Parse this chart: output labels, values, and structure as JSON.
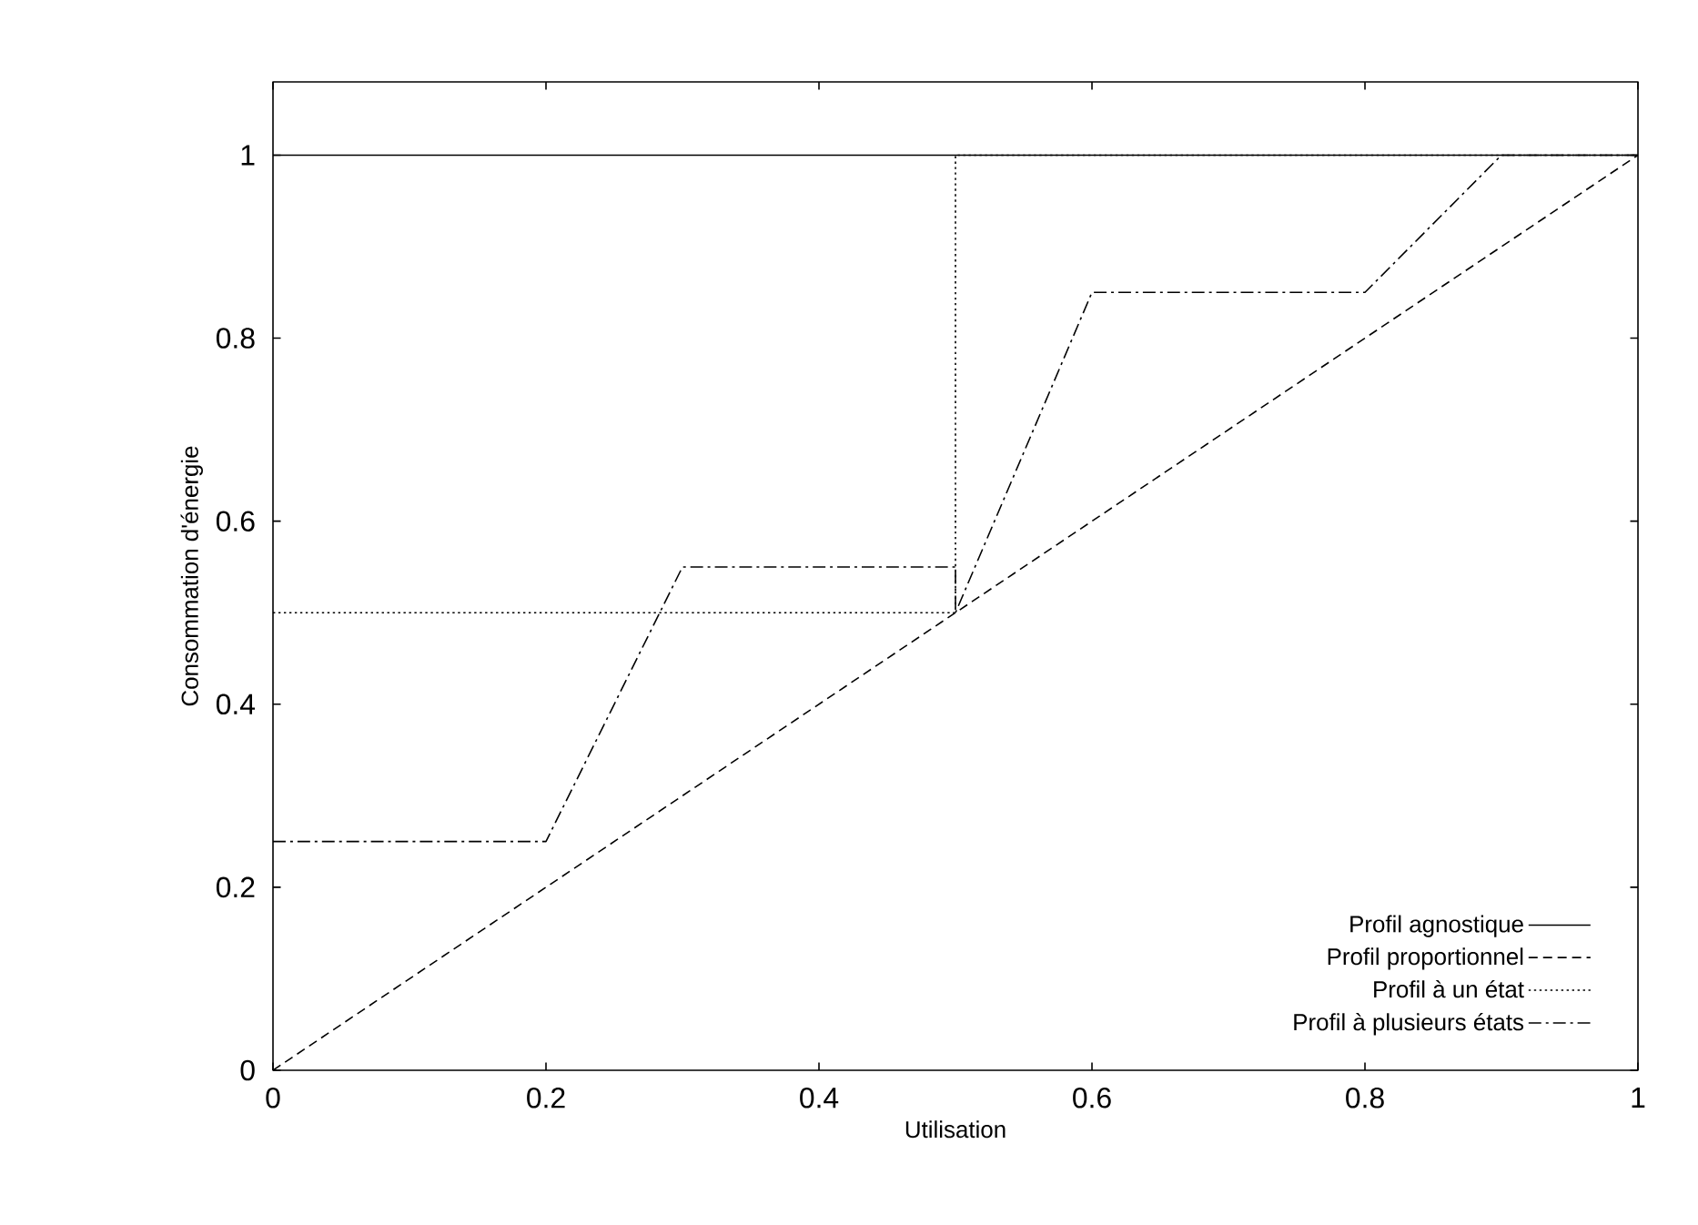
{
  "chart_data": {
    "type": "line",
    "xlabel": "Utilisation",
    "ylabel": "Consommation d'énergie",
    "xlim": [
      0,
      1
    ],
    "ylim": [
      0,
      1.08
    ],
    "xticks": [
      0,
      0.2,
      0.4,
      0.6,
      0.8,
      1
    ],
    "yticks": [
      0,
      0.2,
      0.4,
      0.6,
      0.8,
      1
    ],
    "legend": "bottom right",
    "grid": false,
    "marker": "none",
    "series": [
      {
        "name": "Profil agnostique",
        "color": "#000000",
        "line_style": "solid",
        "x": [
          0,
          1
        ],
        "values": [
          1,
          1
        ]
      },
      {
        "name": "Profil proportionnel",
        "color": "#000000",
        "line_style": "dashed",
        "x": [
          0,
          1
        ],
        "values": [
          0,
          1
        ]
      },
      {
        "name": "Profil à un état",
        "color": "#000000",
        "line_style": "dotted",
        "x": [
          0,
          0.5,
          0.5,
          1
        ],
        "values": [
          0.5,
          0.5,
          1,
          1
        ]
      },
      {
        "name": "Profil à plusieurs états",
        "color": "#000000",
        "line_style": "dashdotted",
        "x": [
          0,
          0.2,
          0.3,
          0.5,
          0.5,
          0.6,
          0.8,
          0.9,
          1
        ],
        "values": [
          0.25,
          0.25,
          0.55,
          0.55,
          0.5,
          0.85,
          0.85,
          1,
          1
        ]
      }
    ]
  }
}
